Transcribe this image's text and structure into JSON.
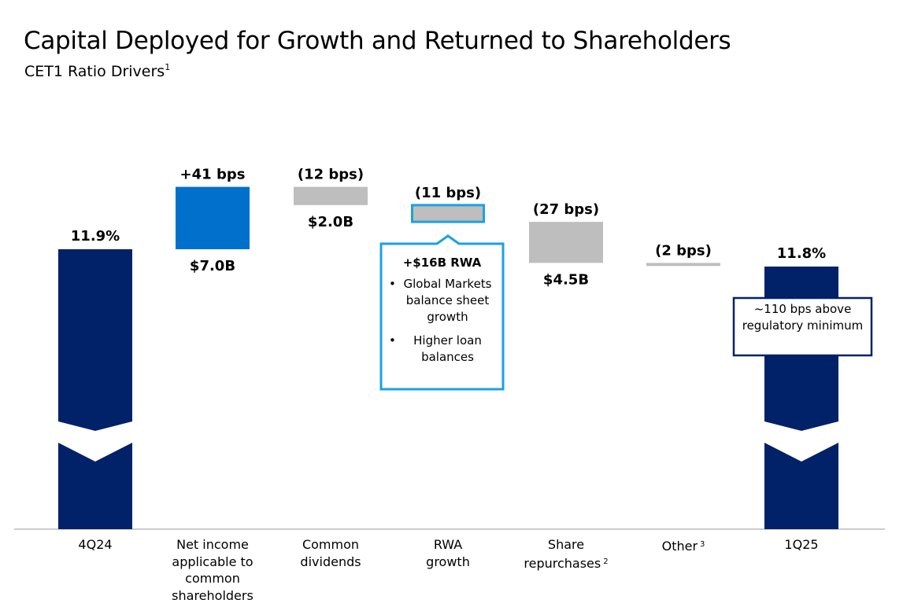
{
  "page": {
    "title": "Capital Deployed for Growth and Returned to Shareholders",
    "subtitle": "CET1 Ratio Drivers",
    "subtitle_footnote": "1"
  },
  "chart_data": {
    "type": "waterfall",
    "unit": "bps",
    "start": {
      "category": "4Q24",
      "value_pct": 11.9,
      "label": "11.9%"
    },
    "end": {
      "category": "1Q25",
      "value_pct": 11.8,
      "label": "11.8%"
    },
    "steps": [
      {
        "category": "Net income applicable to common shareholders",
        "footnote": "",
        "change_bps": 41,
        "change_label": "+41 bps",
        "amount_label": "$7.0B",
        "color": "#0070CD"
      },
      {
        "category": "Common dividends",
        "footnote": "",
        "change_bps": -12,
        "change_label": "(12 bps)",
        "amount_label": "$2.0B",
        "color": "#BEBEBE"
      },
      {
        "category": "RWA growth",
        "footnote": "",
        "change_bps": -11,
        "change_label": "(11 bps)",
        "amount_label": "",
        "color": "#BEBEBE"
      },
      {
        "category": "Share repurchases",
        "footnote": "2",
        "change_bps": -27,
        "change_label": "(27 bps)",
        "amount_label": "$4.5B",
        "color": "#BEBEBE"
      },
      {
        "category": "Other",
        "footnote": "3",
        "change_bps": -2,
        "change_label": "(2 bps)",
        "amount_label": "",
        "color": "#BEBEBE"
      }
    ],
    "axis_break": true,
    "colors": {
      "total_bar": "#012169",
      "increase": "#0070CD",
      "decrease": "#BEBEBE",
      "highlight_outline": "#1BA1E2"
    }
  },
  "rwa_callout": {
    "header": "+$16B RWA",
    "bullets": [
      "Global Markets balance sheet growth",
      "Higher loan balances"
    ]
  },
  "regulatory_callout": {
    "text": "~110 bps above regulatory minimum"
  }
}
